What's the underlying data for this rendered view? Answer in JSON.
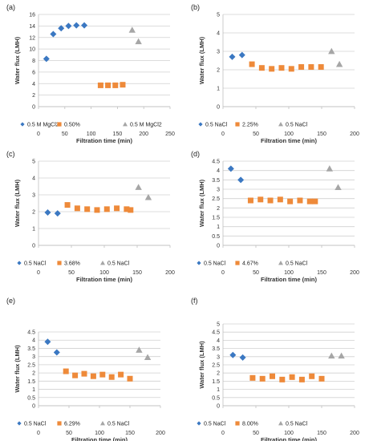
{
  "colors": {
    "blue": "#3b78c2",
    "orange": "#ee8a3a",
    "gray": "#a6a6a6"
  },
  "chart_data": [
    {
      "type": "scatter",
      "panel": "(a)",
      "xlabel": "Filtration time (min)",
      "ylabel": "Water flux (LMH)",
      "xlim": [
        0,
        250
      ],
      "ylim": [
        0,
        16
      ],
      "xticks": [
        0,
        50,
        100,
        150,
        200,
        250
      ],
      "yticks": [
        0,
        2,
        4,
        6,
        8,
        10,
        12,
        14,
        16
      ],
      "series": [
        {
          "name": "0.5  M MgCl2",
          "marker": "diamond",
          "color": "blue",
          "x": [
            15,
            28,
            43,
            57,
            72,
            87
          ],
          "y": [
            8.3,
            12.6,
            13.6,
            14.0,
            14.1,
            14.1
          ]
        },
        {
          "name": "0.50%",
          "marker": "square",
          "color": "orange",
          "x": [
            118,
            132,
            146,
            160
          ],
          "y": [
            3.7,
            3.7,
            3.7,
            3.8
          ]
        },
        {
          "name": "0.5  M MgCl2",
          "marker": "triangle",
          "color": "gray",
          "x": [
            178,
            190
          ],
          "y": [
            13.3,
            11.3
          ]
        }
      ]
    },
    {
      "type": "scatter",
      "panel": "(b)",
      "xlabel": "Filtration time (min)",
      "ylabel": "Water flux (LMH)",
      "xlim": [
        0,
        200
      ],
      "ylim": [
        0,
        5
      ],
      "xticks": [
        0,
        50,
        100,
        150,
        200
      ],
      "yticks": [
        0,
        1,
        2,
        3,
        4,
        5
      ],
      "series": [
        {
          "name": "0.5 NaCl",
          "marker": "diamond",
          "color": "blue",
          "x": [
            14,
            29
          ],
          "y": [
            2.7,
            2.8
          ]
        },
        {
          "name": "2.25%",
          "marker": "square",
          "color": "orange",
          "x": [
            44,
            59,
            74,
            89,
            104,
            119,
            134,
            149
          ],
          "y": [
            2.3,
            2.1,
            2.05,
            2.1,
            2.05,
            2.15,
            2.15,
            2.15
          ]
        },
        {
          "name": "0.5 NaCl",
          "marker": "triangle",
          "color": "gray",
          "x": [
            165,
            177
          ],
          "y": [
            3.0,
            2.3
          ]
        }
      ]
    },
    {
      "type": "scatter",
      "panel": "(c)",
      "xlabel": "Filtration time (min)",
      "ylabel": "Water flux (LMH)",
      "xlim": [
        0,
        200
      ],
      "ylim": [
        0,
        5
      ],
      "xticks": [
        0,
        50,
        100,
        150,
        200
      ],
      "yticks": [
        0,
        1,
        2,
        3,
        4,
        5
      ],
      "series": [
        {
          "name": "0.5 NaCl",
          "marker": "diamond",
          "color": "blue",
          "x": [
            14,
            29
          ],
          "y": [
            1.95,
            1.9
          ]
        },
        {
          "name": "3.68%",
          "marker": "square",
          "color": "orange",
          "x": [
            44,
            59,
            74,
            89,
            104,
            119,
            134,
            140
          ],
          "y": [
            2.4,
            2.2,
            2.15,
            2.1,
            2.15,
            2.2,
            2.15,
            2.1
          ]
        },
        {
          "name": "0.5 NaCl",
          "marker": "triangle",
          "color": "gray",
          "x": [
            152,
            167
          ],
          "y": [
            3.45,
            2.85
          ]
        }
      ]
    },
    {
      "type": "scatter",
      "panel": "(d)",
      "xlabel": "Filtration time (min)",
      "ylabel": "Water flux (LMH)",
      "xlim": [
        0,
        200
      ],
      "ylim": [
        0,
        4.5
      ],
      "xticks": [
        0,
        50,
        100,
        150,
        200
      ],
      "yticks": [
        0,
        0.5,
        1,
        1.5,
        2,
        2.5,
        3,
        3.5,
        4,
        4.5
      ],
      "series": [
        {
          "name": "0.5 NaCl",
          "marker": "diamond",
          "color": "blue",
          "x": [
            12,
            27
          ],
          "y": [
            4.1,
            3.5
          ]
        },
        {
          "name": "4.67%",
          "marker": "square",
          "color": "orange",
          "x": [
            42,
            57,
            72,
            87,
            102,
            117,
            132,
            140
          ],
          "y": [
            2.4,
            2.45,
            2.4,
            2.45,
            2.35,
            2.4,
            2.35,
            2.35
          ]
        },
        {
          "name": "0.5 NaCl",
          "marker": "triangle",
          "color": "gray",
          "x": [
            162,
            175
          ],
          "y": [
            4.1,
            3.1
          ]
        }
      ]
    },
    {
      "type": "scatter",
      "panel": "(e)",
      "xlabel": "Filtration time (min)",
      "ylabel": "Water flux (LMH)",
      "xlim": [
        0,
        200
      ],
      "ylim": [
        0,
        4.5
      ],
      "xticks": [
        0,
        50,
        100,
        150,
        200
      ],
      "yticks": [
        0,
        0.5,
        1,
        1.5,
        2,
        2.5,
        3,
        3.5,
        4,
        4.5
      ],
      "series": [
        {
          "name": "0.5 NaCl",
          "marker": "diamond",
          "color": "blue",
          "x": [
            15,
            30
          ],
          "y": [
            3.9,
            3.25
          ]
        },
        {
          "name": "6.29%",
          "marker": "square",
          "color": "orange",
          "x": [
            45,
            60,
            75,
            90,
            105,
            120,
            135,
            150
          ],
          "y": [
            2.1,
            1.85,
            1.95,
            1.8,
            1.9,
            1.75,
            1.9,
            1.65
          ]
        },
        {
          "name": "0.5 NaCl",
          "marker": "triangle",
          "color": "gray",
          "x": [
            165,
            179
          ],
          "y": [
            3.4,
            2.95
          ]
        }
      ]
    },
    {
      "type": "scatter",
      "panel": "(f)",
      "xlabel": "Filtration time (min)",
      "ylabel": "Water flux (LMH)",
      "xlim": [
        0,
        200
      ],
      "ylim": [
        0,
        5
      ],
      "xticks": [
        0,
        50,
        100,
        150,
        200
      ],
      "yticks": [
        0,
        0.5,
        1,
        1.5,
        2,
        2.5,
        3,
        3.5,
        4,
        4.5,
        5
      ],
      "series": [
        {
          "name": "0.5 NaCl",
          "marker": "diamond",
          "color": "blue",
          "x": [
            15,
            30
          ],
          "y": [
            3.1,
            2.95
          ]
        },
        {
          "name": "8.00%",
          "marker": "square",
          "color": "orange",
          "x": [
            45,
            60,
            75,
            90,
            105,
            120,
            135,
            150
          ],
          "y": [
            1.7,
            1.65,
            1.8,
            1.6,
            1.75,
            1.6,
            1.8,
            1.65
          ]
        },
        {
          "name": "0.5 NaCl",
          "marker": "triangle",
          "color": "gray",
          "x": [
            165,
            180
          ],
          "y": [
            3.05,
            3.05
          ]
        }
      ]
    }
  ]
}
